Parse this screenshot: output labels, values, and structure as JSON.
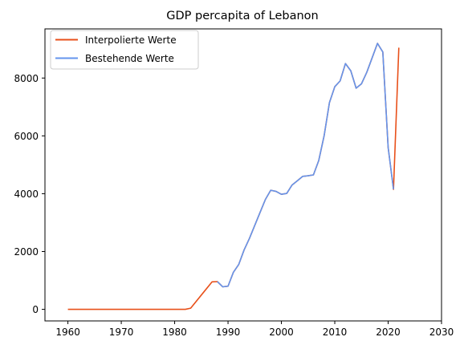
{
  "chart_data": {
    "type": "line",
    "title": "GDP percapita of Lebanon",
    "xlabel": "",
    "ylabel": "",
    "xlim": [
      1955.7,
      2030
    ],
    "ylim": [
      -400,
      9700
    ],
    "xticks": [
      1960,
      1970,
      1980,
      1990,
      2000,
      2010,
      2020,
      2030
    ],
    "yticks": [
      0,
      2000,
      4000,
      6000,
      8000
    ],
    "grid": false,
    "legend": "top-left",
    "series": [
      {
        "name": "Interpolierte Werte",
        "color": "#e8501a",
        "x": [
          1960,
          1965,
          1970,
          1975,
          1980,
          1982,
          1983,
          1987,
          1988,
          1989,
          1990,
          1991,
          1992,
          1993,
          1994,
          1995,
          1996,
          1997,
          1998,
          1999,
          2000,
          2001,
          2002,
          2003,
          2004,
          2005,
          2006,
          2007,
          2008,
          2009,
          2010,
          2011,
          2012,
          2013,
          2014,
          2015,
          2016,
          2017,
          2018,
          2019,
          2020,
          2021,
          2022
        ],
        "y": [
          0,
          0,
          0,
          0,
          0,
          0,
          40,
          950,
          960,
          780,
          800,
          1280,
          1550,
          2050,
          2450,
          2900,
          3350,
          3800,
          4120,
          4080,
          3980,
          4010,
          4300,
          4450,
          4600,
          4620,
          4650,
          5150,
          6000,
          7150,
          7700,
          7900,
          8500,
          8250,
          7650,
          7800,
          8200,
          8700,
          9200,
          8900,
          5600,
          4150,
          9050
        ]
      },
      {
        "name": "Bestehende Werte",
        "color": "#6495ed",
        "x": [
          1988,
          1989,
          1990,
          1991,
          1992,
          1993,
          1994,
          1995,
          1996,
          1997,
          1998,
          1999,
          2000,
          2001,
          2002,
          2003,
          2004,
          2005,
          2006,
          2007,
          2008,
          2009,
          2010,
          2011,
          2012,
          2013,
          2014,
          2015,
          2016,
          2017,
          2018,
          2019,
          2020,
          2021
        ],
        "y": [
          960,
          780,
          800,
          1280,
          1550,
          2050,
          2450,
          2900,
          3350,
          3800,
          4120,
          4080,
          3980,
          4010,
          4300,
          4450,
          4600,
          4620,
          4650,
          5150,
          6000,
          7150,
          7700,
          7900,
          8500,
          8250,
          7650,
          7800,
          8200,
          8700,
          9200,
          8900,
          5600,
          4150
        ]
      }
    ]
  }
}
